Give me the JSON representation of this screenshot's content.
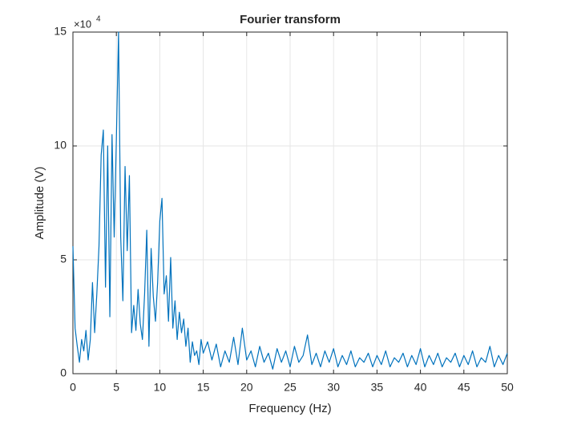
{
  "chart_data": {
    "type": "line",
    "title": "Fourier transform",
    "xlabel": "Frequency (Hz)",
    "ylabel": "Amplitude (V)",
    "y_multiplier_base": "×10",
    "y_multiplier_exponent": "4",
    "x": [
      0,
      0.25,
      0.5,
      0.75,
      1,
      1.25,
      1.5,
      1.75,
      2,
      2.25,
      2.5,
      2.75,
      3,
      3.25,
      3.5,
      3.75,
      4,
      4.25,
      4.5,
      4.75,
      5,
      5.25,
      5.5,
      5.75,
      6,
      6.25,
      6.5,
      6.75,
      7,
      7.25,
      7.5,
      7.75,
      8,
      8.25,
      8.5,
      8.75,
      9,
      9.25,
      9.5,
      9.75,
      10,
      10.25,
      10.5,
      10.75,
      11,
      11.25,
      11.5,
      11.75,
      12,
      12.25,
      12.5,
      12.75,
      13,
      13.25,
      13.5,
      13.75,
      14,
      14.25,
      14.5,
      14.75,
      15,
      15.5,
      16,
      16.5,
      17,
      17.5,
      18,
      18.5,
      19,
      19.5,
      20,
      20.5,
      21,
      21.5,
      22,
      22.5,
      23,
      23.5,
      24,
      24.5,
      25,
      25.5,
      26,
      26.5,
      27,
      27.5,
      28,
      28.5,
      29,
      29.5,
      30,
      30.5,
      31,
      31.5,
      32,
      32.5,
      33,
      33.5,
      34,
      34.5,
      35,
      35.5,
      36,
      36.5,
      37,
      37.5,
      38,
      38.5,
      39,
      39.5,
      40,
      40.5,
      41,
      41.5,
      42,
      42.5,
      43,
      43.5,
      44,
      44.5,
      45,
      45.5,
      46,
      46.5,
      47,
      47.5,
      48,
      48.5,
      49,
      49.5,
      50
    ],
    "values": [
      5.6,
      2,
      1.2,
      0.5,
      1.5,
      1.0,
      1.9,
      0.6,
      1.5,
      4.0,
      1.8,
      3.5,
      5.6,
      9.6,
      10.7,
      3.8,
      10.0,
      2.5,
      10.5,
      6.0,
      10.3,
      15,
      6.0,
      3.2,
      9.1,
      5.4,
      8.7,
      1.8,
      3.0,
      1.9,
      3.7,
      2.2,
      1.5,
      3.5,
      6.3,
      1.2,
      5.5,
      3.4,
      2.3,
      4.0,
      6.7,
      7.7,
      3.5,
      4.3,
      2.3,
      5.1,
      2.0,
      3.2,
      1.5,
      2.7,
      1.8,
      2.4,
      1.2,
      2.0,
      0.5,
      1.4,
      0.8,
      1.0,
      0.4,
      1.5,
      0.9,
      1.4,
      0.6,
      1.3,
      0.3,
      1.0,
      0.5,
      1.6,
      0.4,
      2.0,
      0.6,
      1.0,
      0.3,
      1.2,
      0.5,
      0.9,
      0.2,
      1.1,
      0.5,
      1.0,
      0.3,
      1.2,
      0.5,
      0.8,
      1.7,
      0.4,
      0.9,
      0.3,
      1.0,
      0.5,
      1.1,
      0.3,
      0.8,
      0.4,
      1.0,
      0.3,
      0.7,
      0.5,
      0.9,
      0.3,
      0.8,
      0.4,
      1.0,
      0.3,
      0.7,
      0.5,
      0.9,
      0.3,
      0.8,
      0.4,
      1.1,
      0.3,
      0.8,
      0.4,
      0.9,
      0.3,
      0.7,
      0.5,
      0.9,
      0.3,
      0.8,
      0.4,
      1.0,
      0.3,
      0.7,
      0.5,
      1.2,
      0.3,
      0.8,
      0.4,
      0.9
    ],
    "color": "#0072bd",
    "xlim": [
      0,
      50
    ],
    "ylim": [
      0,
      15
    ],
    "xticks": [
      0,
      5,
      10,
      15,
      20,
      25,
      30,
      35,
      40,
      45,
      50
    ],
    "yticks": [
      0,
      5,
      10,
      15
    ],
    "grid": true
  }
}
